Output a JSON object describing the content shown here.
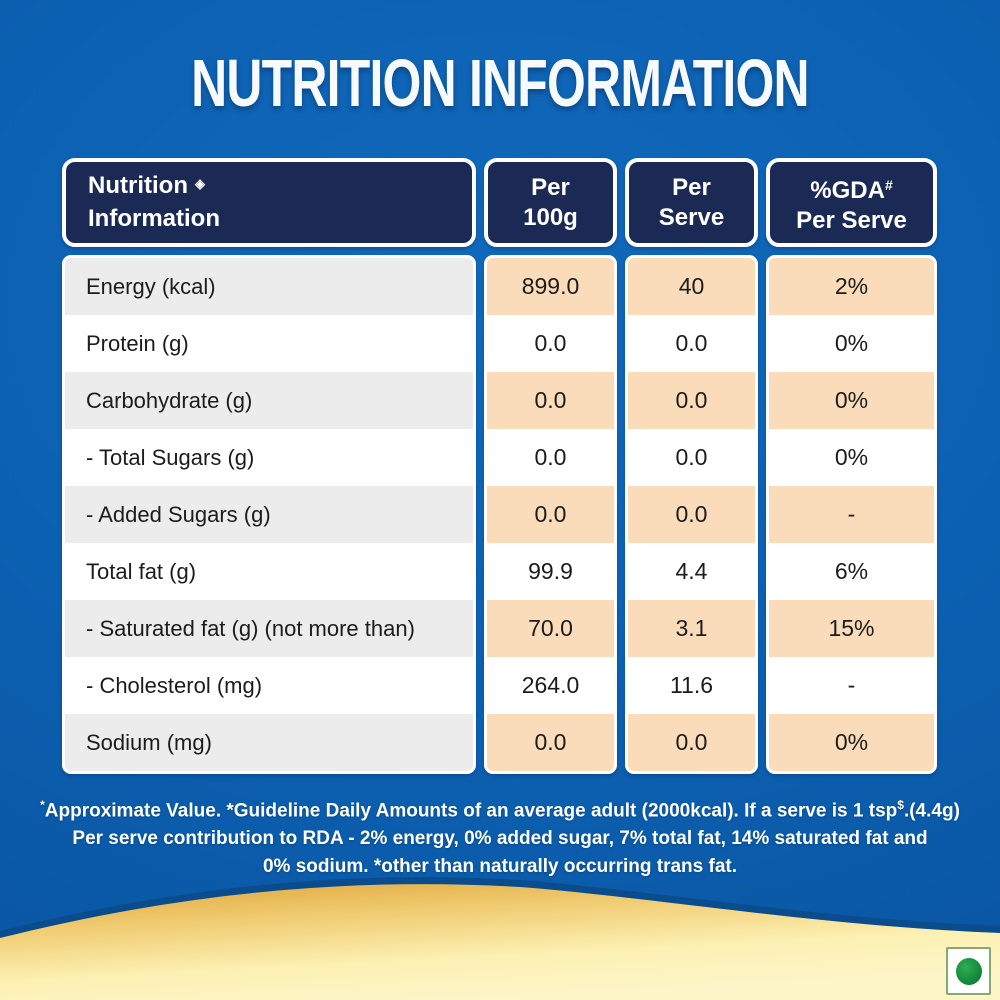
{
  "title": "NUTRITION INFORMATION",
  "table": {
    "header": {
      "col1_line1": "Nutrition",
      "col1_mark": "◈",
      "col1_line2": "Information",
      "col2_line1": "Per",
      "col2_line2": "100g",
      "col3_line1": "Per",
      "col3_line2": "Serve",
      "col4_line1": "%GDA",
      "col4_sup": "#",
      "col4_line2": "Per Serve"
    },
    "column_keys": [
      "label",
      "per_100g",
      "per_serve",
      "gda_per_serve"
    ],
    "rows": [
      {
        "label": "Energy (kcal)",
        "per_100g": "899.0",
        "per_serve": "40",
        "gda_per_serve": "2%"
      },
      {
        "label": "Protein (g)",
        "per_100g": "0.0",
        "per_serve": "0.0",
        "gda_per_serve": "0%"
      },
      {
        "label": "Carbohydrate (g)",
        "per_100g": "0.0",
        "per_serve": "0.0",
        "gda_per_serve": "0%"
      },
      {
        "label": "- Total Sugars (g)",
        "per_100g": "0.0",
        "per_serve": "0.0",
        "gda_per_serve": "0%"
      },
      {
        "label": "- Added Sugars (g)",
        "per_100g": "0.0",
        "per_serve": "0.0",
        "gda_per_serve": "-"
      },
      {
        "label": "Total fat (g)",
        "per_100g": "99.9",
        "per_serve": "4.4",
        "gda_per_serve": "6%"
      },
      {
        "label": "- Saturated fat (g) (not more than)",
        "per_100g": "70.0",
        "per_serve": "3.1",
        "gda_per_serve": "15%"
      },
      {
        "label": "- Cholesterol (mg)",
        "per_100g": "264.0",
        "per_serve": "11.6",
        "gda_per_serve": "-"
      },
      {
        "label": "Sodium (mg)",
        "per_100g": "0.0",
        "per_serve": "0.0",
        "gda_per_serve": "0%"
      }
    ]
  },
  "footnote": {
    "sup1": "*",
    "line1a": "Approximate Value. *Guideline Daily Amounts of an average adult (2000kcal). If a serve is 1 tsp",
    "sup2": "$",
    "line1b": ".(4.4g)",
    "line2": "Per serve contribution to RDA - 2% energy, 0% added sugar, 7% total fat, 14% saturated fat and",
    "line3": "0% sodium. *other than naturally occurring trans fat."
  },
  "veg_mark": {
    "meaning": "vegetarian-product-symbol",
    "color": "#128a3b"
  },
  "colors": {
    "background_blue": "#0b5fb0",
    "header_navy": "#1b2a55",
    "row_peach": "#fadcba",
    "row_gray": "#ececec",
    "gold_wave_dark": "#dda437",
    "gold_wave_light": "#fdf5c8",
    "text_dark": "#1c1c1c",
    "text_white": "#ffffff"
  }
}
